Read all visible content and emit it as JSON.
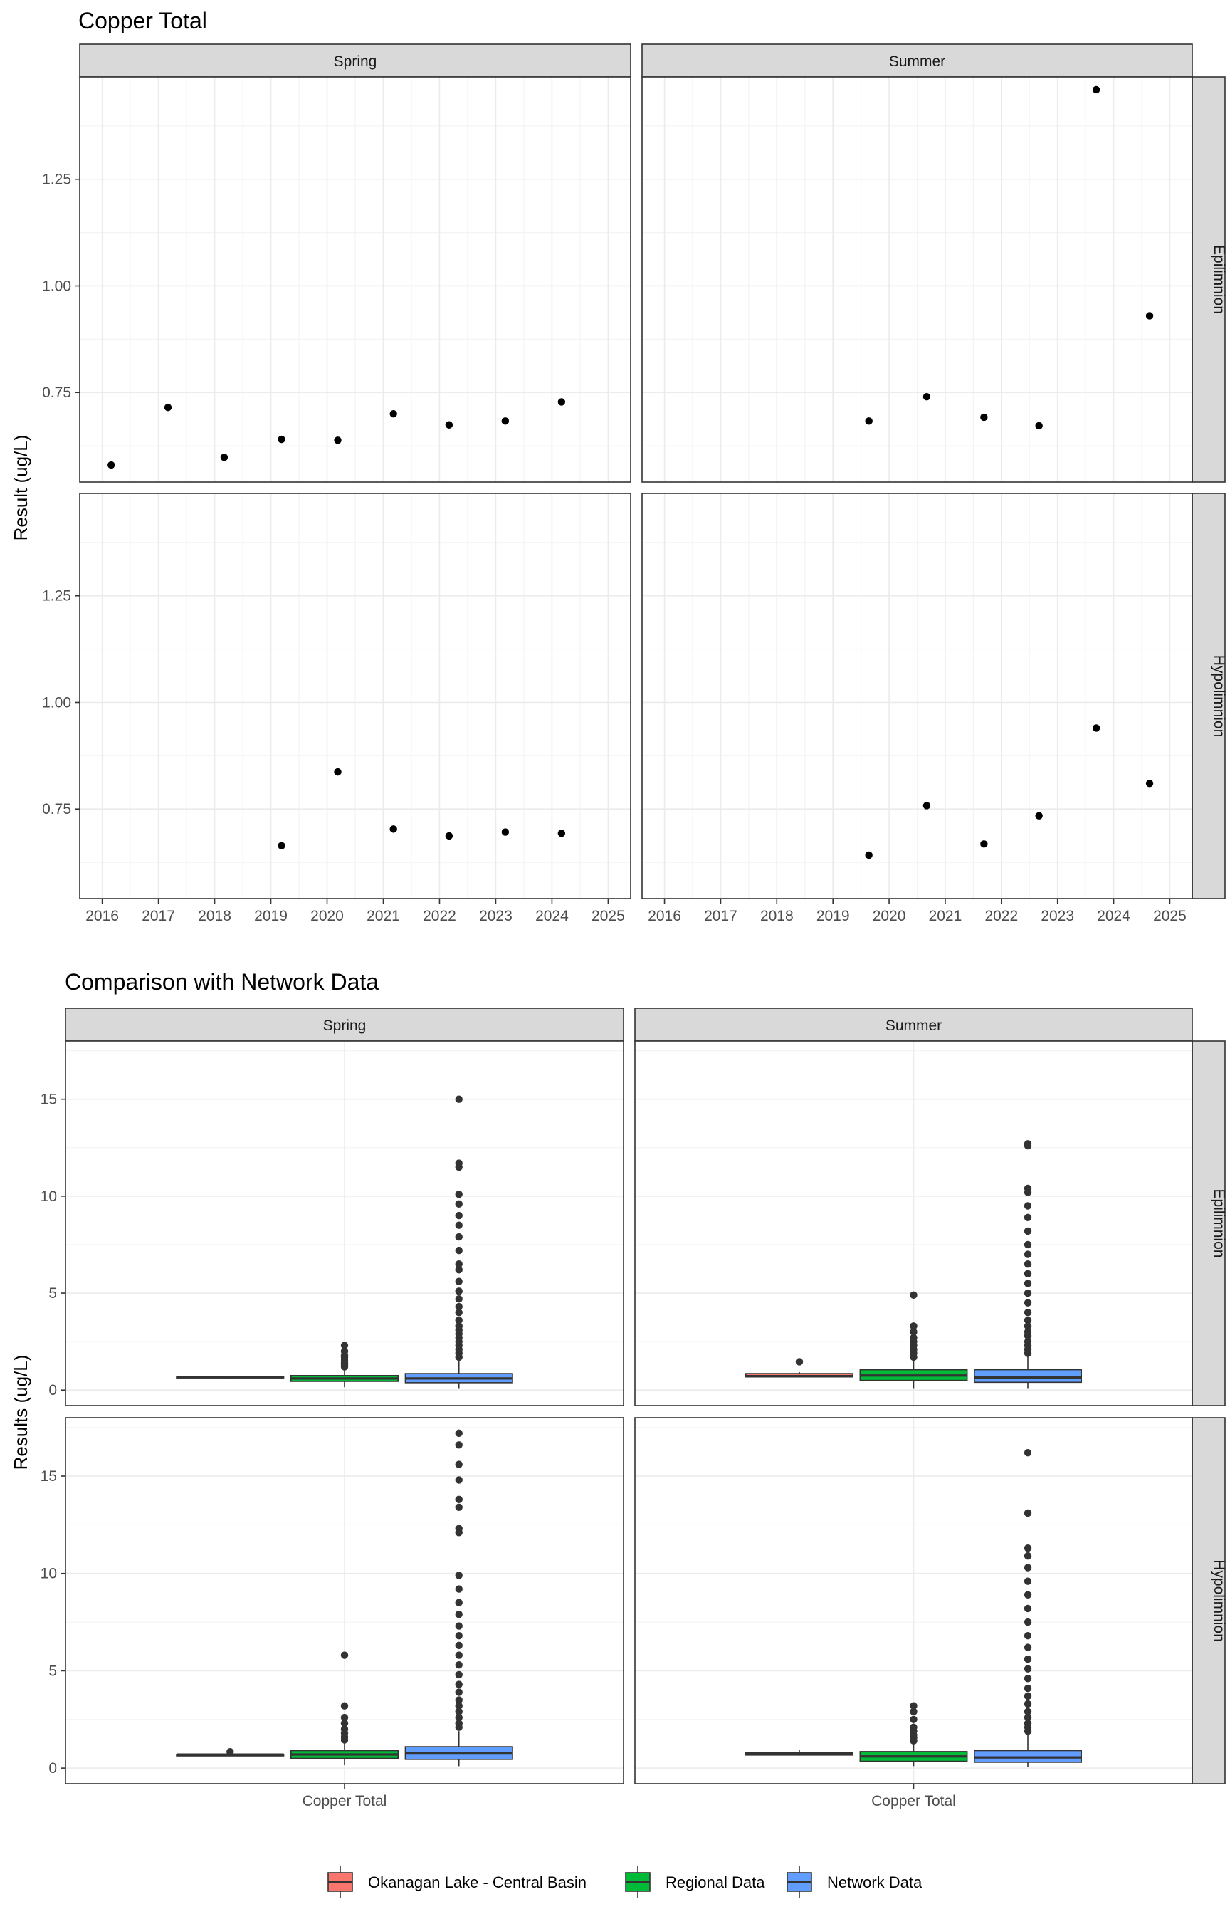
{
  "chart_data": [
    {
      "type": "scatter",
      "title": "Copper Total",
      "ylabel": "Result (ug/L)",
      "xlabel": "",
      "columns": [
        "Spring",
        "Summer"
      ],
      "rows": [
        "Epilimnion",
        "Hypolimnion"
      ],
      "x_ticks": [
        "2016",
        "2017",
        "2018",
        "2019",
        "2020",
        "2021",
        "2022",
        "2023",
        "2024",
        "2025"
      ],
      "xlim": [
        2015.6,
        2025.4
      ],
      "y_ticks": [
        "0.75",
        "1.00",
        "1.25"
      ],
      "ylim": [
        0.54,
        1.49
      ],
      "grid": true,
      "panels": [
        {
          "column": "Spring",
          "row": "Epilimnion",
          "points": [
            [
              2016.16,
              0.58
            ],
            [
              2017.17,
              0.715
            ],
            [
              2018.17,
              0.598
            ],
            [
              2019.19,
              0.64
            ],
            [
              2020.19,
              0.638
            ],
            [
              2021.18,
              0.7
            ],
            [
              2022.17,
              0.674
            ],
            [
              2023.17,
              0.683
            ],
            [
              2024.17,
              0.728
            ]
          ]
        },
        {
          "column": "Summer",
          "row": "Epilimnion",
          "points": [
            [
              2019.64,
              0.683
            ],
            [
              2020.67,
              0.74
            ],
            [
              2021.69,
              0.692
            ],
            [
              2022.67,
              0.672
            ],
            [
              2023.69,
              1.46
            ],
            [
              2024.64,
              0.93
            ]
          ]
        },
        {
          "column": "Spring",
          "row": "Hypolimnion",
          "points": [
            [
              2019.19,
              0.664
            ],
            [
              2020.19,
              0.837
            ],
            [
              2021.18,
              0.703
            ],
            [
              2022.17,
              0.687
            ],
            [
              2023.17,
              0.696
            ],
            [
              2024.17,
              0.693
            ]
          ]
        },
        {
          "column": "Summer",
          "row": "Hypolimnion",
          "points": [
            [
              2019.64,
              0.642
            ],
            [
              2020.67,
              0.758
            ],
            [
              2021.69,
              0.668
            ],
            [
              2022.67,
              0.734
            ],
            [
              2023.69,
              0.94
            ],
            [
              2024.64,
              0.81
            ]
          ]
        }
      ]
    },
    {
      "type": "box",
      "title": "Comparison with Network Data",
      "ylabel": "Results (ug/L)",
      "xlabel": "",
      "category": "Copper Total",
      "columns": [
        "Spring",
        "Summer"
      ],
      "rows": [
        "Epilimnion",
        "Hypolimnion"
      ],
      "y_ticks": [
        "0",
        "5",
        "10",
        "15"
      ],
      "ylim": [
        -0.8,
        18.0
      ],
      "grid": true,
      "legend": {
        "position": "bottom",
        "items": [
          {
            "name": "Okanagan Lake - Central Basin",
            "color": "#F8766D"
          },
          {
            "name": "Regional Data",
            "color": "#00BA38"
          },
          {
            "name": "Network Data",
            "color": "#619CFF"
          }
        ]
      },
      "panels": [
        {
          "column": "Spring",
          "row": "Epilimnion",
          "boxes": [
            {
              "series": "Okanagan Lake - Central Basin",
              "min": 0.58,
              "q1": 0.64,
              "median": 0.68,
              "q3": 0.7,
              "max": 0.73,
              "outliers": []
            },
            {
              "series": "Regional Data",
              "min": 0.15,
              "q1": 0.45,
              "median": 0.6,
              "q3": 0.75,
              "max": 1.15,
              "outliers": [
                1.2,
                1.3,
                1.4,
                1.5,
                1.6,
                1.7,
                1.8,
                2.0,
                2.3
              ]
            },
            {
              "series": "Network Data",
              "min": 0.1,
              "q1": 0.38,
              "median": 0.6,
              "q3": 0.85,
              "max": 1.6,
              "outliers": [
                1.7,
                1.9,
                2.1,
                2.3,
                2.5,
                2.7,
                2.9,
                3.1,
                3.3,
                3.6,
                4.0,
                4.3,
                4.7,
                5.1,
                5.6,
                6.2,
                6.5,
                7.2,
                7.9,
                8.5,
                9.0,
                9.6,
                10.1,
                11.5,
                11.7,
                15.0
              ]
            }
          ]
        },
        {
          "column": "Summer",
          "row": "Epilimnion",
          "boxes": [
            {
              "series": "Okanagan Lake - Central Basin",
              "min": 0.67,
              "q1": 0.68,
              "median": 0.72,
              "q3": 0.85,
              "max": 0.93,
              "outliers": [
                1.46
              ]
            },
            {
              "series": "Regional Data",
              "min": 0.1,
              "q1": 0.5,
              "median": 0.75,
              "q3": 1.05,
              "max": 1.6,
              "outliers": [
                1.7,
                1.9,
                2.1,
                2.3,
                2.5,
                2.7,
                3.0,
                3.3,
                4.9
              ]
            },
            {
              "series": "Network Data",
              "min": 0.1,
              "q1": 0.4,
              "median": 0.65,
              "q3": 1.05,
              "max": 1.8,
              "outliers": [
                1.9,
                2.1,
                2.3,
                2.5,
                2.8,
                3.0,
                3.3,
                3.6,
                4.0,
                4.5,
                5.0,
                5.5,
                6.0,
                6.5,
                7.0,
                7.5,
                8.2,
                8.9,
                9.5,
                10.2,
                10.4,
                12.6,
                12.7
              ]
            }
          ]
        },
        {
          "column": "Spring",
          "row": "Hypolimnion",
          "boxes": [
            {
              "series": "Okanagan Lake - Central Basin",
              "min": 0.66,
              "q1": 0.69,
              "median": 0.695,
              "q3": 0.7,
              "max": 0.7,
              "outliers": [
                0.837
              ]
            },
            {
              "series": "Regional Data",
              "min": 0.15,
              "q1": 0.5,
              "median": 0.7,
              "q3": 0.9,
              "max": 1.35,
              "outliers": [
                1.45,
                1.6,
                1.8,
                2.0,
                2.3,
                2.6,
                3.2,
                5.8
              ]
            },
            {
              "series": "Network Data",
              "min": 0.1,
              "q1": 0.45,
              "median": 0.75,
              "q3": 1.1,
              "max": 1.9,
              "outliers": [
                2.1,
                2.3,
                2.6,
                2.9,
                3.2,
                3.5,
                3.9,
                4.3,
                4.8,
                5.3,
                5.8,
                6.3,
                6.8,
                7.3,
                7.9,
                8.5,
                9.2,
                9.9,
                12.1,
                12.3,
                13.4,
                13.8,
                14.8,
                15.6,
                16.6,
                17.2
              ]
            }
          ]
        },
        {
          "column": "Summer",
          "row": "Hypolimnion",
          "boxes": [
            {
              "series": "Okanagan Lake - Central Basin",
              "min": 0.64,
              "q1": 0.67,
              "median": 0.75,
              "q3": 0.79,
              "max": 0.94,
              "outliers": []
            },
            {
              "series": "Regional Data",
              "min": 0.1,
              "q1": 0.35,
              "median": 0.6,
              "q3": 0.85,
              "max": 1.3,
              "outliers": [
                1.4,
                1.55,
                1.7,
                1.9,
                2.1,
                2.5,
                2.9,
                3.2
              ]
            },
            {
              "series": "Network Data",
              "min": 0.05,
              "q1": 0.3,
              "median": 0.55,
              "q3": 0.9,
              "max": 1.8,
              "outliers": [
                1.9,
                2.1,
                2.3,
                2.6,
                2.9,
                3.3,
                3.7,
                4.1,
                4.6,
                5.1,
                5.6,
                6.2,
                6.8,
                7.5,
                8.2,
                8.9,
                9.6,
                10.3,
                10.9,
                11.3,
                13.1,
                16.2
              ]
            }
          ]
        }
      ]
    }
  ]
}
